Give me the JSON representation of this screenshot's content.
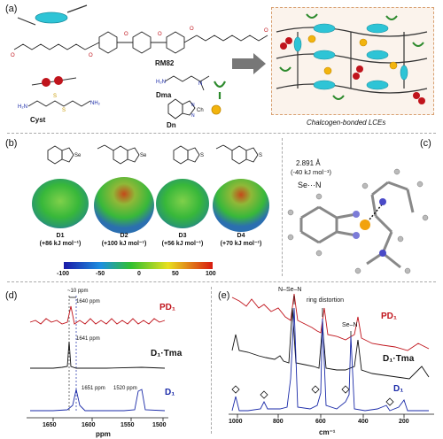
{
  "panel_a": {
    "label": "(a)",
    "rm82": "RM82",
    "dma": "Dma",
    "cyst": "Cyst",
    "dn": "Dn",
    "ch": "Ch",
    "network_caption": "Chalcogen-bonded LCEs"
  },
  "panel_b": {
    "label": "(b)",
    "molecules": [
      {
        "name": "D1",
        "energy": "(+86 kJ mol⁻¹)"
      },
      {
        "name": "D2",
        "energy": "(+100 kJ mol⁻¹)"
      },
      {
        "name": "D3",
        "energy": "(+56 kJ mol⁻¹)"
      },
      {
        "name": "D4",
        "energy": "(+70 kJ mol⁻¹)"
      }
    ],
    "colorbar_ticks": [
      "-100",
      "-50",
      "0",
      "50",
      "100"
    ],
    "se": "Se",
    "s": "S",
    "n": "N"
  },
  "panel_c": {
    "label": "(c)",
    "distance": "2.891 Å",
    "energy": "(-40 kJ mol⁻¹)",
    "interaction": "Se···N"
  },
  "panel_d": {
    "label": "(d)",
    "shift_note": "~10 ppm",
    "traces": [
      {
        "name": "PD₁",
        "peak": "1640 ppm",
        "color": "#c0141c"
      },
      {
        "name": "D₁·Tma",
        "peak": "1641 ppm",
        "color": "#111111"
      },
      {
        "name": "D₁",
        "peak": "1651 ppm",
        "peak2": "1520 ppm",
        "color": "#1a2aa8"
      }
    ],
    "x_ticks": [
      "1650",
      "1600",
      "1550",
      "1500"
    ],
    "x_label": "ppm"
  },
  "panel_e": {
    "label": "(e)",
    "annot_nsen": "N–Se–N",
    "annot_ring": "ring distortion",
    "annot_sen": "Se–N",
    "traces": [
      {
        "name": "PD₁",
        "color": "#c0141c"
      },
      {
        "name": "D₁·Tma",
        "color": "#111111"
      },
      {
        "name": "D₁",
        "color": "#1a2aa8"
      }
    ],
    "x_ticks": [
      "1000",
      "800",
      "600",
      "400",
      "200"
    ],
    "x_label": "cm⁻¹"
  }
}
